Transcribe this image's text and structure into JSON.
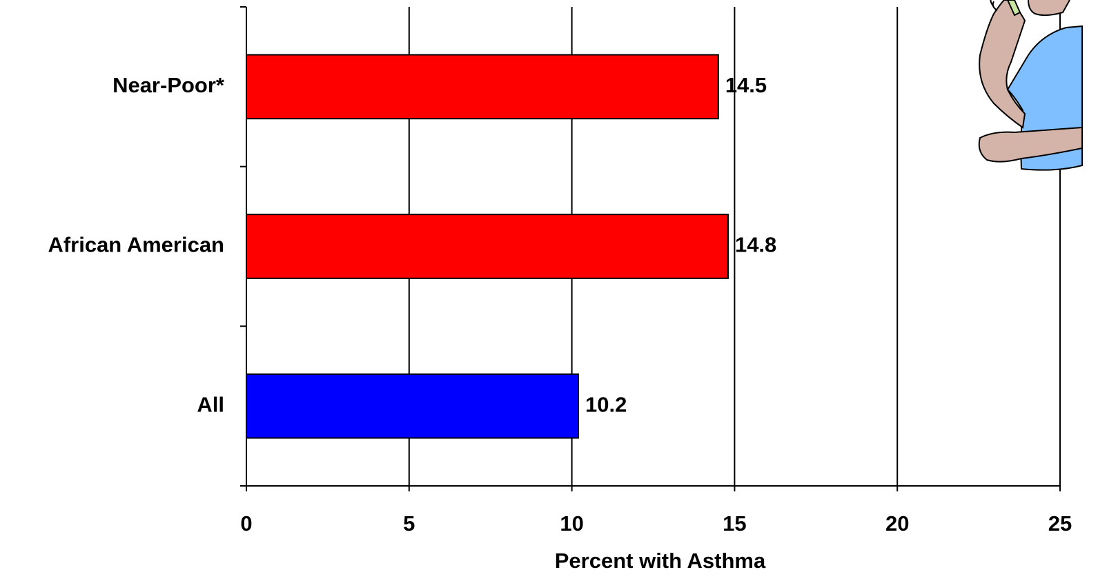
{
  "chart_data": {
    "type": "hbar",
    "categories": [
      "Near-Poor*",
      "African American",
      "All"
    ],
    "values": [
      14.5,
      14.8,
      10.2
    ],
    "colors": [
      "#ff0000",
      "#ff0000",
      "#0000ff"
    ],
    "x_label": "Percent with Asthma",
    "xlim": [
      0,
      25
    ],
    "xticks": [
      0,
      5,
      10,
      15,
      20,
      25
    ],
    "grid": true
  }
}
